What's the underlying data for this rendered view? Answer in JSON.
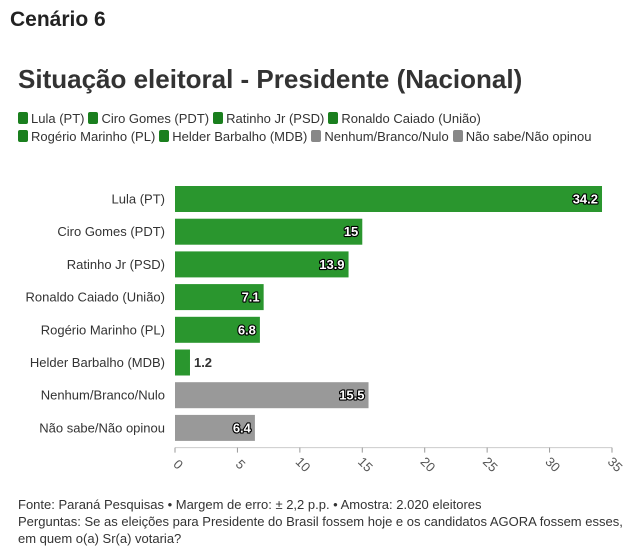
{
  "header": {
    "scenario": "Cenário 6"
  },
  "chart_data": {
    "type": "bar",
    "orientation": "horizontal",
    "title": "Situação eleitoral - Presidente (Nacional)",
    "categories": [
      "Lula (PT)",
      "Ciro Gomes (PDT)",
      "Ratinho Jr (PSD)",
      "Ronaldo Caiado (União)",
      "Rogério Marinho (PL)",
      "Helder Barbalho (MDB)",
      "Nenhum/Branco/Nulo",
      "Não sabe/Não opinou"
    ],
    "values": [
      34.2,
      15,
      13.9,
      7.1,
      6.8,
      1.2,
      15.5,
      6.4
    ],
    "value_labels": [
      "34.2",
      "15",
      "13.9",
      "7.1",
      "6.8",
      "1.2",
      "15.5",
      "6.4"
    ],
    "colors": [
      "#2a962e",
      "#2a962e",
      "#2a962e",
      "#2a962e",
      "#2a962e",
      "#2a962e",
      "#999999",
      "#999999"
    ],
    "legend": [
      {
        "label": "Lula (PT)",
        "color": "#1a7f1e"
      },
      {
        "label": "Ciro Gomes (PDT)",
        "color": "#1a7f1e"
      },
      {
        "label": "Ratinho Jr (PSD)",
        "color": "#1a7f1e"
      },
      {
        "label": "Ronaldo Caiado (União)",
        "color": "#1a7f1e"
      },
      {
        "label": "Rogério Marinho (PL)",
        "color": "#1a7f1e"
      },
      {
        "label": "Helder Barbalho (MDB)",
        "color": "#1a7f1e"
      },
      {
        "label": "Nenhum/Branco/Nulo",
        "color": "#888888"
      },
      {
        "label": "Não sabe/Não opinou",
        "color": "#888888"
      }
    ],
    "legend_position": "top",
    "xlim": [
      0,
      35
    ],
    "xticks": [
      0,
      5,
      10,
      15,
      20,
      25,
      30,
      35
    ],
    "grid": false
  },
  "footer": {
    "source": "Fonte: Paraná Pesquisas • Margem de erro: ± 2,2 p.p. • Amostra: 2.020 eleitores",
    "question": "Perguntas: Se as eleições para Presidente do Brasil fossem hoje e os candidatos AGORA fossem esses, em quem o(a) Sr(a) votaria?"
  }
}
